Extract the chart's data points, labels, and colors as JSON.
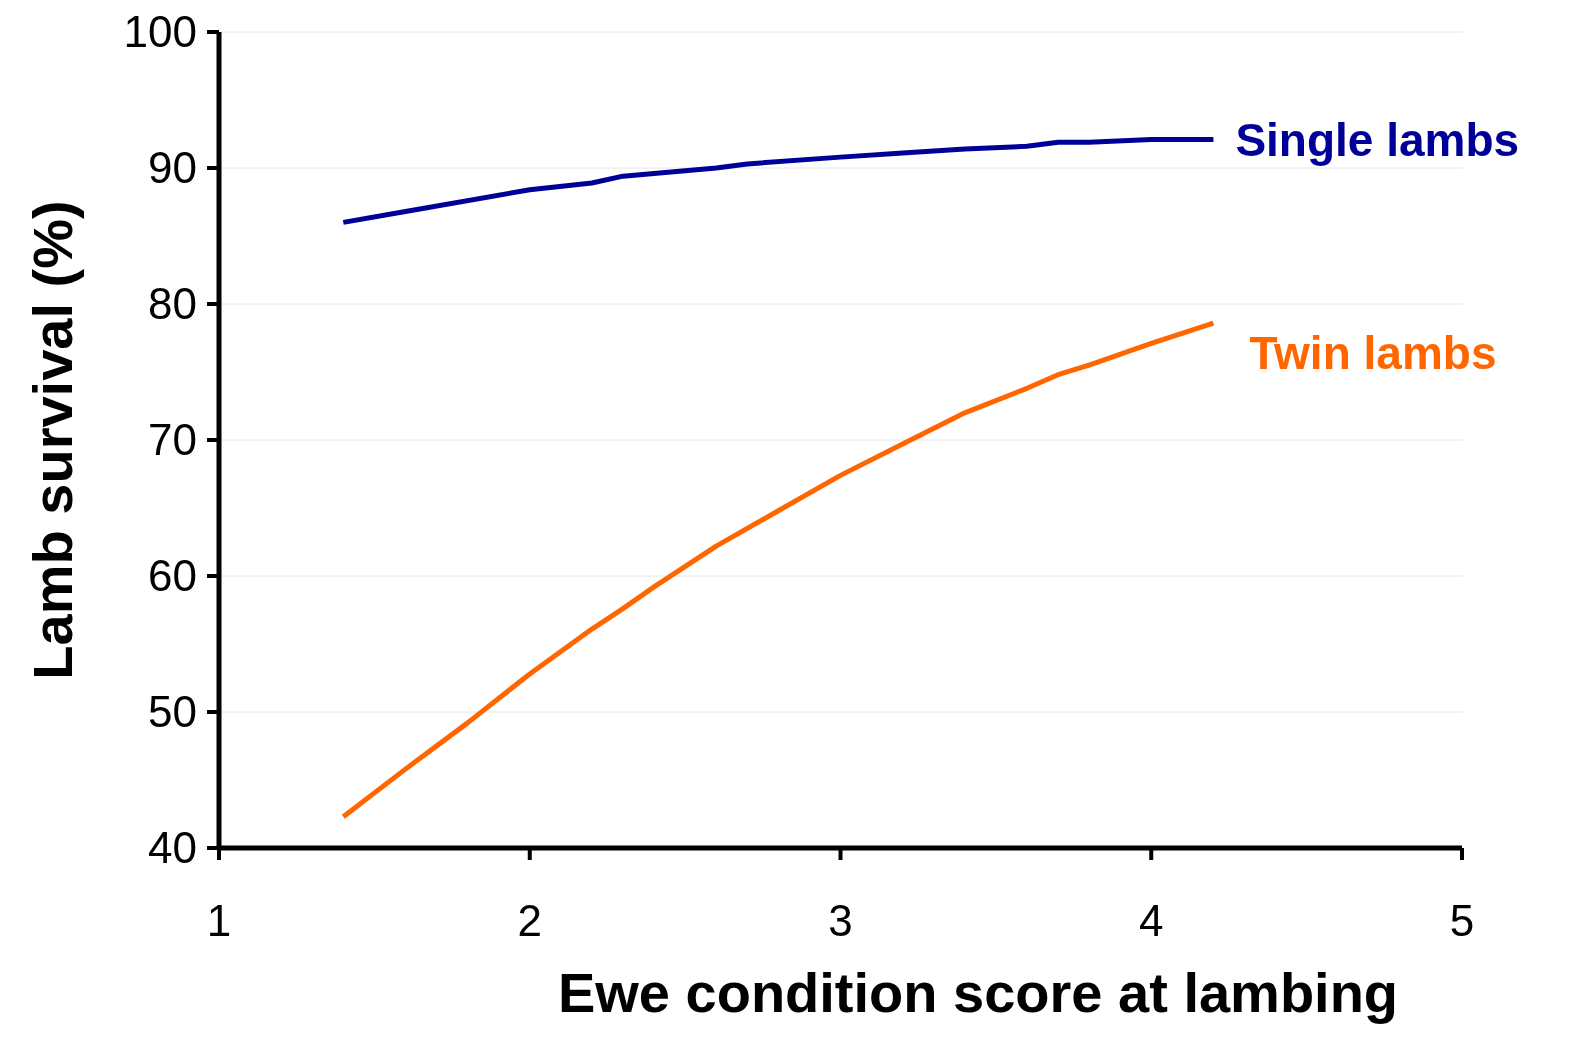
{
  "chart_data": {
    "type": "line",
    "xlabel": "Ewe condition score at lambing",
    "ylabel": "Lamb survival (%)",
    "xlim": [
      1,
      5
    ],
    "xticks": [
      1,
      2,
      3,
      4,
      5
    ],
    "ylim": [
      40,
      100
    ],
    "yticks": [
      40,
      50,
      60,
      70,
      80,
      90,
      100
    ],
    "grid": "y",
    "marker": "none",
    "line_style": "solid",
    "series": [
      {
        "name": "Single lambs",
        "color": "#000099",
        "x": [
          1.4,
          1.6,
          2.0,
          2.2,
          2.3,
          2.6,
          2.7,
          3.0,
          3.2,
          3.4,
          3.6,
          3.7,
          3.8,
          4.0,
          4.2
        ],
        "values": [
          86.0,
          86.8,
          88.4,
          88.9,
          89.4,
          90.0,
          90.3,
          90.8,
          91.1,
          91.4,
          91.6,
          91.9,
          91.9,
          92.1,
          92.1
        ]
      },
      {
        "name": "Twin lambs",
        "color": "#ff6600",
        "x": [
          1.4,
          1.6,
          1.8,
          2.0,
          2.2,
          2.3,
          2.4,
          2.6,
          2.8,
          3.0,
          3.2,
          3.4,
          3.6,
          3.7,
          3.8,
          4.0,
          4.2
        ],
        "values": [
          42.3,
          45.8,
          49.2,
          52.8,
          56.1,
          57.6,
          59.2,
          62.2,
          64.8,
          67.4,
          69.7,
          72.0,
          73.8,
          74.8,
          75.5,
          77.1,
          78.6
        ]
      }
    ]
  }
}
